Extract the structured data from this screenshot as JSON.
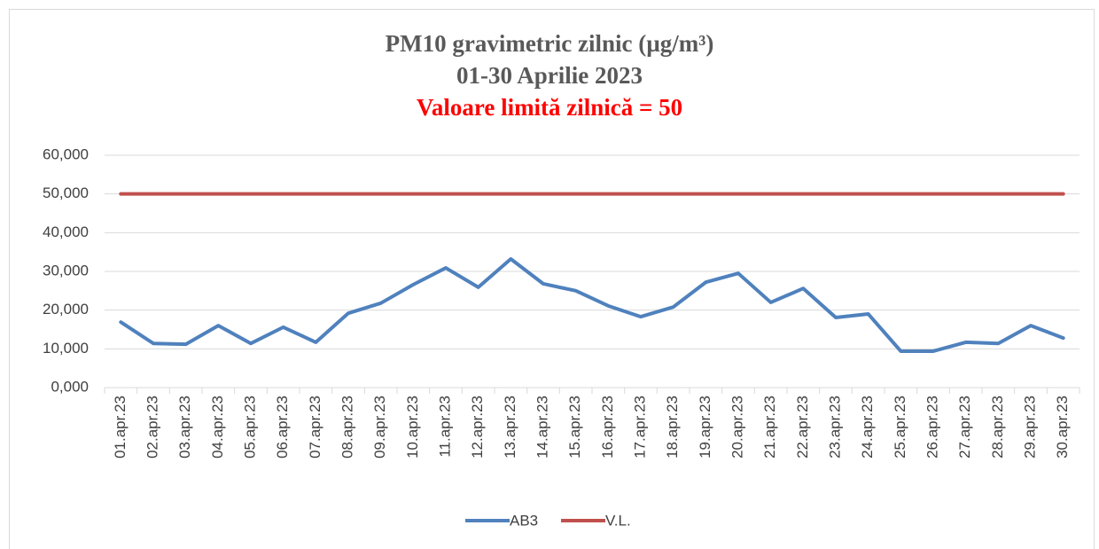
{
  "chart_data": {
    "type": "line",
    "title": "PM10 gravimetric zilnic (µg/m³)",
    "subtitle": "01-30 Aprilie 2023",
    "annotation": "Valoare limită zilnică = 50",
    "categories": [
      "01.apr.23",
      "02.apr.23",
      "03.apr.23",
      "04.apr.23",
      "05.apr.23",
      "06.apr.23",
      "07.apr.23",
      "08.apr.23",
      "09.apr.23",
      "10.apr.23",
      "11.apr.23",
      "12.apr.23",
      "13.apr.23",
      "14.apr.23",
      "15.apr.23",
      "16.apr.23",
      "17.apr.23",
      "18.apr.23",
      "19.apr.23",
      "20.apr.23",
      "21.apr.23",
      "22.apr.23",
      "23.apr.23",
      "24.apr.23",
      "25.apr.23",
      "26.apr.23",
      "27.apr.23",
      "28.apr.23",
      "29.apr.23",
      "30.apr.23"
    ],
    "series": [
      {
        "name": "AB3",
        "color": "#4f81bd",
        "values": [
          16.9,
          11.4,
          11.2,
          16.0,
          11.4,
          15.6,
          11.7,
          19.2,
          21.8,
          26.6,
          30.9,
          25.9,
          33.2,
          26.8,
          25.0,
          21.1,
          18.3,
          20.8,
          27.2,
          29.5,
          22.0,
          25.6,
          18.1,
          19.0,
          9.4,
          9.4,
          11.7,
          11.4,
          16.0,
          12.8
        ]
      },
      {
        "name": "V.L.",
        "color": "#c0504d",
        "values": [
          50,
          50,
          50,
          50,
          50,
          50,
          50,
          50,
          50,
          50,
          50,
          50,
          50,
          50,
          50,
          50,
          50,
          50,
          50,
          50,
          50,
          50,
          50,
          50,
          50,
          50,
          50,
          50,
          50,
          50
        ]
      }
    ],
    "ylim": [
      0,
      60
    ],
    "yticks": [
      {
        "value": 0,
        "label": "0,000"
      },
      {
        "value": 10,
        "label": "10,000"
      },
      {
        "value": 20,
        "label": "20,000"
      },
      {
        "value": 30,
        "label": "30,000"
      },
      {
        "value": 40,
        "label": "40,000"
      },
      {
        "value": 50,
        "label": "50,000"
      },
      {
        "value": 60,
        "label": "60,000"
      }
    ],
    "grid": true,
    "legend": "bottom"
  }
}
